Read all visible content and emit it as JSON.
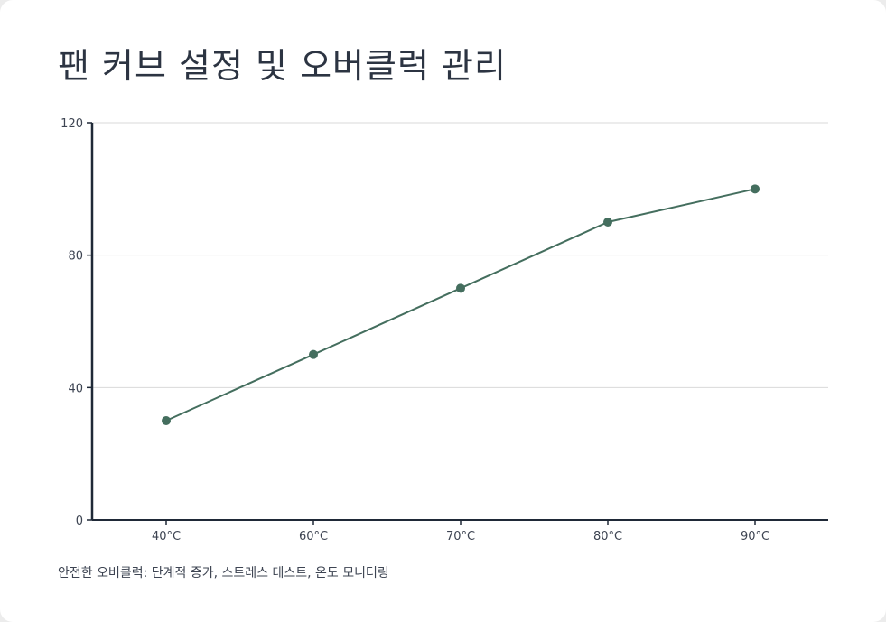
{
  "title": "팬 커브 설정 및 오버클럭 관리",
  "caption": "안전한 오버클럭: 단계적 증가, 스트레스 테스트, 온도 모니터링",
  "colors": {
    "series": "#446e5e",
    "axis": "#1f2937",
    "grid": "#d9d9d9",
    "text": "#3d4452"
  },
  "chart_data": {
    "type": "line",
    "title": "팬 커브 설정 및 오버클럭 관리",
    "xlabel": "",
    "ylabel": "",
    "categories": [
      "40°C",
      "60°C",
      "70°C",
      "80°C",
      "90°C"
    ],
    "series": [
      {
        "values": [
          30,
          50,
          70,
          90,
          100
        ]
      }
    ],
    "ylim": [
      0,
      120
    ],
    "yticks": [
      0,
      40,
      80,
      120
    ],
    "grid": true,
    "legend": "none"
  }
}
